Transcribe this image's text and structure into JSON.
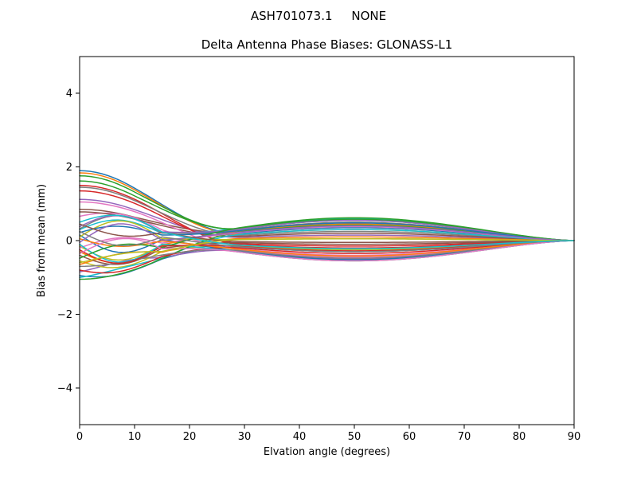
{
  "figure": {
    "suptitle": "ASH701073.1     NONE",
    "title": "Delta Antenna Phase Biases: GLONASS-L1",
    "xlabel": "Elvation angle (degrees)",
    "ylabel": "Bias from mean (mm)"
  },
  "colors": {
    "background": "#ffffff",
    "axes_spine": "#000000",
    "text": "#000000"
  },
  "chart_data": {
    "type": "line",
    "suptitle": "ASH701073.1     NONE",
    "title": "Delta Antenna Phase Biases: GLONASS-L1",
    "xlabel": "Elvation angle (degrees)",
    "ylabel": "Bias from mean (mm)",
    "xlim": [
      0,
      90
    ],
    "ylim": [
      -5,
      5
    ],
    "x_ticks": [
      0,
      10,
      20,
      30,
      40,
      50,
      60,
      70,
      80,
      90
    ],
    "x_tick_labels": [
      "0",
      "10",
      "20",
      "30",
      "40",
      "50",
      "60",
      "70",
      "80",
      "90"
    ],
    "y_ticks": [
      -4,
      -2,
      0,
      2,
      4
    ],
    "y_tick_labels": [
      "−4",
      "−2",
      "0",
      "2",
      "4"
    ],
    "grid": false,
    "legend_position": "none",
    "description": "Many per-satellite delta phase-bias curves. Each curve starts at its bias_at_0_deg value at 0 degrees elevation, curves converge into a narrow band near 0 mm by ~28 degrees, spread into a lens-shaped bundle reaching bias_at_50_deg around 50 degrees (envelope about +0.62 to -0.55 mm), then all converge to exactly 0 mm at 90 degrees.",
    "x_sample_step_deg": 1,
    "convergence_point": {
      "elevation_deg": 90,
      "bias_mm": 0
    },
    "envelope_mm": {
      "at_0_deg": [
        -1.05,
        1.9
      ],
      "at_30_deg": [
        -0.4,
        0.4
      ],
      "at_50_deg": [
        -0.55,
        0.62
      ],
      "at_90_deg": [
        0,
        0
      ]
    },
    "color_cycle": [
      "#1f77b4",
      "#ff7f0e",
      "#2ca02c",
      "#d62728",
      "#9467bd",
      "#8c564b",
      "#e377c2",
      "#7f7f7f",
      "#bcbd22",
      "#17becf"
    ],
    "series": [
      {
        "color_index": 0,
        "bias_at_0_deg": 1.9,
        "bias_at_50_deg": 0.35,
        "wiggle": 0
      },
      {
        "color_index": 1,
        "bias_at_0_deg": 1.84,
        "bias_at_50_deg": 0.3,
        "wiggle": 0
      },
      {
        "color_index": 2,
        "bias_at_0_deg": 1.76,
        "bias_at_50_deg": 0.55,
        "wiggle": 0
      },
      {
        "color_index": 3,
        "bias_at_0_deg": 1.5,
        "bias_at_50_deg": -0.2,
        "wiggle": 0
      },
      {
        "color_index": 4,
        "bias_at_0_deg": 1.12,
        "bias_at_50_deg": 0.15,
        "wiggle": 0
      },
      {
        "color_index": 5,
        "bias_at_0_deg": 0.85,
        "bias_at_50_deg": 0.4,
        "wiggle": 0
      },
      {
        "color_index": 6,
        "bias_at_0_deg": 0.66,
        "bias_at_50_deg": -0.45,
        "wiggle": 0.15
      },
      {
        "color_index": 7,
        "bias_at_0_deg": 1.45,
        "bias_at_50_deg": 0.25,
        "wiggle": 0
      },
      {
        "color_index": 8,
        "bias_at_0_deg": -0.15,
        "bias_at_50_deg": -0.55,
        "wiggle": -0.4
      },
      {
        "color_index": 9,
        "bias_at_0_deg": 0.3,
        "bias_at_50_deg": 0.6,
        "wiggle": 0.3
      },
      {
        "color_index": 0,
        "bias_at_0_deg": -0.95,
        "bias_at_50_deg": -0.3,
        "wiggle": -0.1
      },
      {
        "color_index": 1,
        "bias_at_0_deg": -0.3,
        "bias_at_50_deg": 0.45,
        "wiggle": -0.35
      },
      {
        "color_index": 2,
        "bias_at_0_deg": 1.62,
        "bias_at_50_deg": 0.58,
        "wiggle": 0
      },
      {
        "color_index": 3,
        "bias_at_0_deg": 1.35,
        "bias_at_50_deg": -0.15,
        "wiggle": 0
      },
      {
        "color_index": 4,
        "bias_at_0_deg": -0.85,
        "bias_at_50_deg": -0.5,
        "wiggle": 0.15
      },
      {
        "color_index": 5,
        "bias_at_0_deg": 0.78,
        "bias_at_50_deg": 0.2,
        "wiggle": 0
      },
      {
        "color_index": 6,
        "bias_at_0_deg": 1.05,
        "bias_at_50_deg": -0.4,
        "wiggle": 0
      },
      {
        "color_index": 7,
        "bias_at_0_deg": 0.32,
        "bias_at_50_deg": 0.5,
        "wiggle": 0.4
      },
      {
        "color_index": 8,
        "bias_at_0_deg": -0.55,
        "bias_at_50_deg": -0.25,
        "wiggle": -0.25
      },
      {
        "color_index": 9,
        "bias_at_0_deg": -1.0,
        "bias_at_50_deg": 0.3,
        "wiggle": 0.1
      },
      {
        "color_index": 0,
        "bias_at_0_deg": 0.15,
        "bias_at_50_deg": -0.52,
        "wiggle": -0.45
      },
      {
        "color_index": 1,
        "bias_at_0_deg": -0.65,
        "bias_at_50_deg": 0.1,
        "wiggle": 0.2
      },
      {
        "color_index": 2,
        "bias_at_0_deg": -1.05,
        "bias_at_50_deg": 0.42,
        "wiggle": 0
      },
      {
        "color_index": 3,
        "bias_at_0_deg": -0.8,
        "bias_at_50_deg": -0.35,
        "wiggle": -0.15
      },
      {
        "color_index": 4,
        "bias_at_0_deg": 0.38,
        "bias_at_50_deg": 0.55,
        "wiggle": 0.35
      },
      {
        "color_index": 5,
        "bias_at_0_deg": -0.4,
        "bias_at_50_deg": -0.1,
        "wiggle": -0.3
      },
      {
        "color_index": 6,
        "bias_at_0_deg": -0.2,
        "bias_at_50_deg": 0.38,
        "wiggle": 0.25
      },
      {
        "color_index": 7,
        "bias_at_0_deg": -0.7,
        "bias_at_50_deg": -0.48,
        "wiggle": 0
      },
      {
        "color_index": 8,
        "bias_at_0_deg": 0.1,
        "bias_at_50_deg": 0.05,
        "wiggle": 0.45
      },
      {
        "color_index": 9,
        "bias_at_0_deg": -0.1,
        "bias_at_50_deg": -0.55,
        "wiggle": -0.5
      },
      {
        "color_index": 0,
        "bias_at_0_deg": 0.22,
        "bias_at_50_deg": 0.48,
        "wiggle": 0.2
      },
      {
        "color_index": 1,
        "bias_at_0_deg": 0.05,
        "bias_at_50_deg": -0.42,
        "wiggle": -0.2
      },
      {
        "color_index": 2,
        "bias_at_0_deg": -0.48,
        "bias_at_50_deg": 0.62,
        "wiggle": 0.3
      },
      {
        "color_index": 3,
        "bias_at_0_deg": -0.25,
        "bias_at_50_deg": -0.28,
        "wiggle": -0.4
      },
      {
        "color_index": 4,
        "bias_at_0_deg": -0.05,
        "bias_at_50_deg": 0.4,
        "wiggle": 0.5
      },
      {
        "color_index": 5,
        "bias_at_0_deg": 0.45,
        "bias_at_50_deg": -0.05,
        "wiggle": -0.25
      },
      {
        "color_index": 6,
        "bias_at_0_deg": -0.35,
        "bias_at_50_deg": -0.55,
        "wiggle": 0.35
      },
      {
        "color_index": 7,
        "bias_at_0_deg": 0.25,
        "bias_at_50_deg": -0.3,
        "wiggle": -0.35
      },
      {
        "color_index": 8,
        "bias_at_0_deg": -0.6,
        "bias_at_50_deg": 0.05,
        "wiggle": 0.15
      },
      {
        "color_index": 9,
        "bias_at_0_deg": 0.5,
        "bias_at_50_deg": -0.22,
        "wiggle": 0.25
      }
    ]
  }
}
